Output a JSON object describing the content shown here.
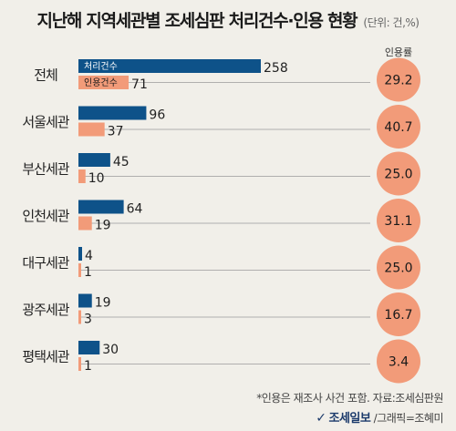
{
  "header": {
    "title": "지난해 지역세관별 조세심판 처리건수·인용 현황",
    "unit": "(단위: 건,%)"
  },
  "chart_data": {
    "type": "bar",
    "orientation": "horizontal",
    "categories": [
      "전체",
      "서울세관",
      "부산세관",
      "인천세관",
      "대구세관",
      "광주세관",
      "평택세관"
    ],
    "series": [
      {
        "name": "처리건수",
        "values": [
          258,
          96,
          45,
          64,
          4,
          19,
          30
        ],
        "color": "#0e5289"
      },
      {
        "name": "인용건수",
        "values": [
          71,
          37,
          10,
          19,
          1,
          3,
          1
        ],
        "color": "#f29b79"
      }
    ],
    "rate": {
      "name": "인용률",
      "values": [
        "29.2",
        "40.7",
        "25.0",
        "31.1",
        "25.0",
        "16.7",
        "3.4"
      ],
      "color": "#f29b79"
    },
    "xlim": [
      0,
      258
    ],
    "grid": false
  },
  "footer": {
    "note": "*인용은 재조사 사건 포함. 자료:조세심판원",
    "logo_mark": "✓",
    "brand": "조세일보",
    "credit": " /그래픽=조혜미"
  }
}
